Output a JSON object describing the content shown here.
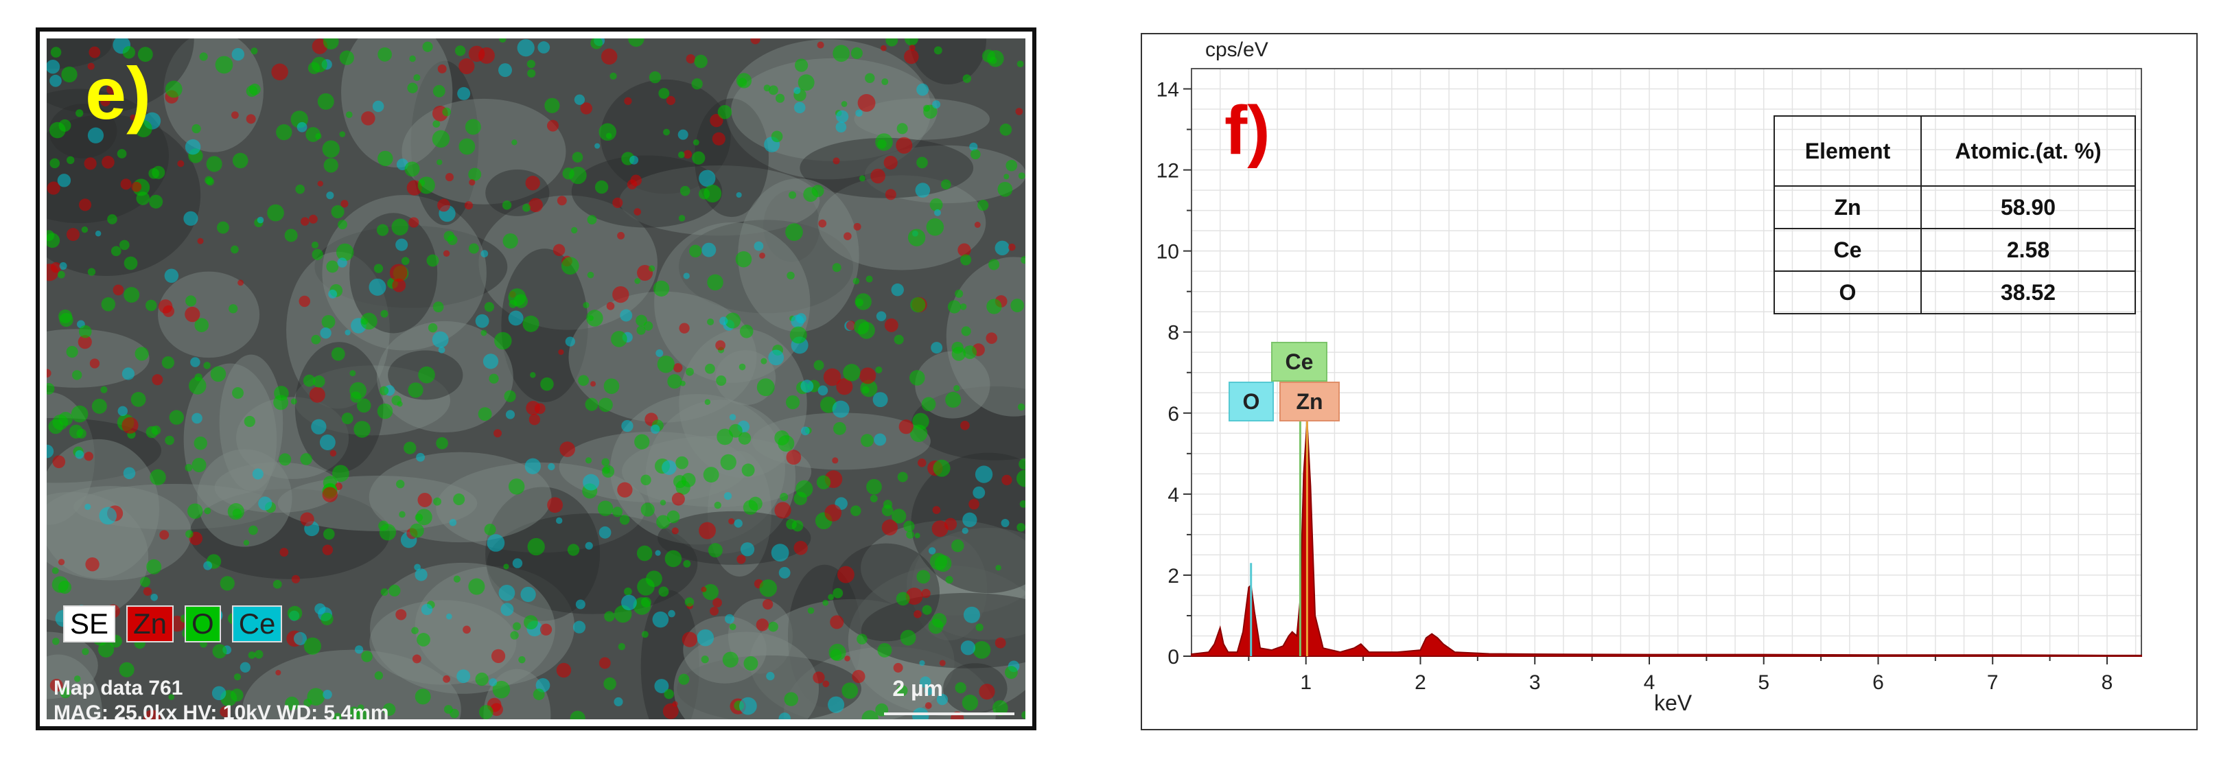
{
  "panel_e": {
    "label": "e)",
    "legend": [
      "SE",
      "Zn",
      "O",
      "Ce"
    ],
    "map_data": "Map data 761",
    "params": "MAG: 25.0kx   HV: 10kV   WD: 5.4mm",
    "scale": "2 µm",
    "colors": {
      "Zn": "#d00000",
      "O": "#00c000",
      "Ce": "#00c0d0"
    }
  },
  "panel_f": {
    "label": "f)",
    "peak_tags": {
      "ce": "Ce",
      "o": "O",
      "zn": "Zn"
    },
    "table": {
      "headers": [
        "Element",
        "Atomic.(at. %)"
      ],
      "rows": [
        [
          "Zn",
          "58.90"
        ],
        [
          "Ce",
          "2.58"
        ],
        [
          "O",
          "38.52"
        ]
      ]
    }
  },
  "chart_data": {
    "type": "area",
    "xlabel": "keV",
    "ylabel": "cps/eV",
    "xlim": [
      0,
      8.3
    ],
    "ylim": [
      0,
      14.5
    ],
    "xticks": [
      1,
      2,
      3,
      4,
      5,
      6,
      7,
      8
    ],
    "yticks": [
      0,
      2,
      4,
      6,
      8,
      10,
      12,
      14
    ],
    "grid": true,
    "series": [
      {
        "color": "#c00000",
        "x": [
          0.0,
          0.15,
          0.2,
          0.25,
          0.28,
          0.32,
          0.4,
          0.45,
          0.5,
          0.52,
          0.55,
          0.6,
          0.7,
          0.8,
          0.85,
          0.88,
          0.92,
          0.95,
          0.98,
          1.01,
          1.04,
          1.08,
          1.15,
          1.3,
          1.42,
          1.48,
          1.55,
          1.8,
          2.0,
          2.05,
          2.1,
          2.15,
          2.2,
          2.3,
          2.6,
          3.0,
          4.0,
          5.0,
          6.0,
          7.0,
          8.0,
          8.3
        ],
        "y": [
          0.05,
          0.1,
          0.3,
          0.7,
          0.3,
          0.1,
          0.1,
          0.6,
          1.7,
          1.75,
          1.1,
          0.2,
          0.15,
          0.25,
          0.5,
          0.6,
          0.5,
          1.4,
          4.5,
          5.8,
          4.2,
          1.0,
          0.2,
          0.1,
          0.2,
          0.3,
          0.1,
          0.1,
          0.15,
          0.45,
          0.55,
          0.45,
          0.3,
          0.1,
          0.06,
          0.05,
          0.04,
          0.04,
          0.03,
          0.03,
          0.02,
          0.02
        ]
      }
    ]
  }
}
